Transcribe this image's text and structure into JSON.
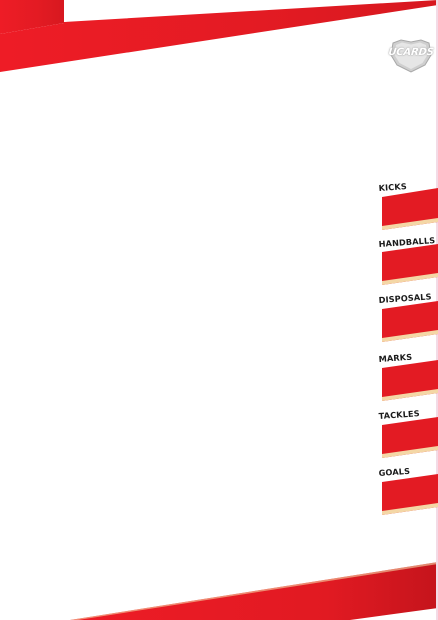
{
  "logo": {
    "text": "UCARDS",
    "icon": "shield-logo-icon"
  },
  "stats": [
    {
      "label": "KICKS"
    },
    {
      "label": "HANDBALLS"
    },
    {
      "label": "DISPOSALS"
    },
    {
      "label": "MARKS"
    },
    {
      "label": "TACKLES"
    },
    {
      "label": "GOALS"
    }
  ],
  "colors": {
    "accent_red": "#e31b23",
    "accent_red_dark": "#b9121a",
    "stripe_cream": "#f4d7a6"
  }
}
